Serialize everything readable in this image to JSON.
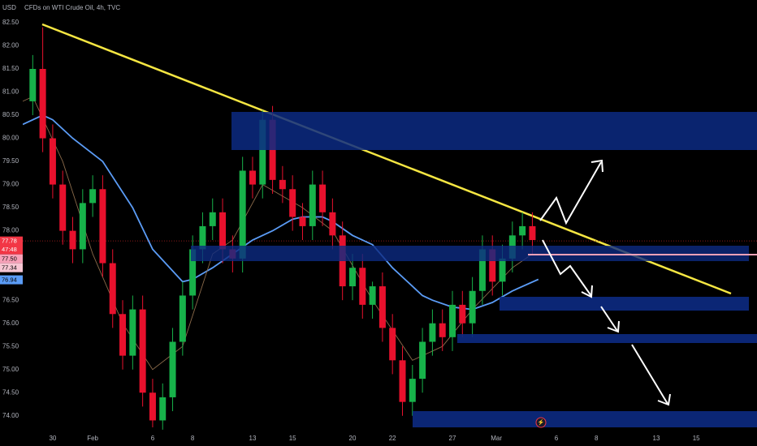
{
  "chart_data": {
    "type": "candlestick",
    "title": "CFDs on WTI Crude Oil, 4h, TVC",
    "currency": "USD",
    "up_color": "#17b24a",
    "down_color": "#e8112d",
    "xlim": [
      -1.5,
      35.24
    ],
    "ylim": [
      73.61,
      82.99
    ],
    "xticks": [
      {
        "value": 0,
        "label": "30"
      },
      {
        "value": 2,
        "label": "Feb"
      },
      {
        "value": 5,
        "label": "6"
      },
      {
        "value": 7,
        "label": "8"
      },
      {
        "value": 10,
        "label": "13"
      },
      {
        "value": 12,
        "label": "15"
      },
      {
        "value": 15,
        "label": "20"
      },
      {
        "value": 17,
        "label": "22"
      },
      {
        "value": 20,
        "label": "27"
      },
      {
        "value": 22.2,
        "label": "Mar"
      },
      {
        "value": 25.2,
        "label": "6"
      },
      {
        "value": 27.2,
        "label": "8"
      },
      {
        "value": 30.2,
        "label": "13"
      },
      {
        "value": 32.2,
        "label": "15"
      }
    ],
    "yticks": [
      {
        "value": 82.5,
        "label": "82.50"
      },
      {
        "value": 82,
        "label": "82.00"
      },
      {
        "value": 81.5,
        "label": "81.50"
      },
      {
        "value": 81,
        "label": "81.00"
      },
      {
        "value": 80.5,
        "label": "80.50"
      },
      {
        "value": 80,
        "label": "80.00"
      },
      {
        "value": 79.5,
        "label": "79.50"
      },
      {
        "value": 79,
        "label": "79.00"
      },
      {
        "value": 78.5,
        "label": "78.50"
      },
      {
        "value": 78,
        "label": "78.00"
      },
      {
        "value": 76.5,
        "label": "76.50"
      },
      {
        "value": 76,
        "label": "76.00"
      },
      {
        "value": 75.5,
        "label": "75.50"
      },
      {
        "value": 75,
        "label": "75.00"
      },
      {
        "value": 74.5,
        "label": "74.50"
      },
      {
        "value": 74,
        "label": "74.00"
      }
    ],
    "x": [
      -1,
      -0.5,
      0,
      0.5,
      1,
      1.5,
      2,
      2.5,
      3,
      3.5,
      4,
      4.5,
      5,
      5.5,
      6,
      6.5,
      7,
      7.5,
      8,
      8.5,
      9,
      9.5,
      10,
      10.5,
      11,
      11.5,
      12,
      12.5,
      13,
      13.5,
      14,
      14.5,
      15,
      15.5,
      16,
      16.5,
      17,
      17.5,
      18,
      18.5,
      19,
      19.5,
      20,
      20.5,
      21,
      21.5,
      22,
      22.5,
      23,
      23.5,
      24
    ],
    "open": [
      80.8,
      81.5,
      80.0,
      79.0,
      78.0,
      77.6,
      78.6,
      78.9,
      77.3,
      76.2,
      75.3,
      76.3,
      74.5,
      73.9,
      74.4,
      75.6,
      76.6,
      77.6,
      78.1,
      78.4,
      77.6,
      77.4,
      79.3,
      79.0,
      80.4,
      79.1,
      78.9,
      78.3,
      78.1,
      79.0,
      78.4,
      77.9,
      76.8,
      77.2,
      76.4,
      76.8,
      75.9,
      75.2,
      74.3,
      74.8,
      75.6,
      76.0,
      75.7,
      76.4,
      76.0,
      76.7,
      77.6,
      76.9,
      77.4,
      77.9,
      78.1
    ],
    "high": [
      81.8,
      82.4,
      80.3,
      79.3,
      78.3,
      78.9,
      79.2,
      79.2,
      77.6,
      76.5,
      76.6,
      76.6,
      74.8,
      74.7,
      75.9,
      76.9,
      77.9,
      78.4,
      78.7,
      78.7,
      77.9,
      79.6,
      79.6,
      80.6,
      80.7,
      79.4,
      79.2,
      78.6,
      79.3,
      79.3,
      78.7,
      78.2,
      77.5,
      77.5,
      76.9,
      77.1,
      76.2,
      75.5,
      75.1,
      75.9,
      76.3,
      76.3,
      76.7,
      76.7,
      77.0,
      77.9,
      77.9,
      77.7,
      78.2,
      78.4,
      78.4
    ],
    "low": [
      80.5,
      79.7,
      78.7,
      77.7,
      77.3,
      77.3,
      78.3,
      77.0,
      75.9,
      75.0,
      75.0,
      74.2,
      73.75,
      73.7,
      74.1,
      75.3,
      76.3,
      77.3,
      77.8,
      77.3,
      77.1,
      77.1,
      78.7,
      78.7,
      78.8,
      78.6,
      78.0,
      77.8,
      77.8,
      78.1,
      77.6,
      76.5,
      76.5,
      76.1,
      76.1,
      75.6,
      74.9,
      74.0,
      74.0,
      74.5,
      75.3,
      75.4,
      75.4,
      75.7,
      75.7,
      76.4,
      76.6,
      76.6,
      77.1,
      77.6,
      77.5
    ],
    "close": [
      81.5,
      80.0,
      79.0,
      78.0,
      77.6,
      78.6,
      78.9,
      77.3,
      76.2,
      75.3,
      76.3,
      74.5,
      73.9,
      74.4,
      75.6,
      76.6,
      77.6,
      78.1,
      78.4,
      77.6,
      77.4,
      79.3,
      79.0,
      80.4,
      79.1,
      78.9,
      78.3,
      78.1,
      79.0,
      78.4,
      77.9,
      76.8,
      77.2,
      76.4,
      76.8,
      75.9,
      75.2,
      74.3,
      74.8,
      75.6,
      76.0,
      75.7,
      76.4,
      76.0,
      76.7,
      77.6,
      76.9,
      77.4,
      77.9,
      78.1,
      77.8
    ],
    "lines": [
      {
        "color": "#5b9cf6",
        "width": 1.8,
        "x": [
          -1.5,
          -0.5,
          0,
          1,
          2.5,
          4,
          5,
          6.5,
          7,
          8,
          9,
          10,
          11,
          12,
          12.5,
          13.5,
          14,
          15,
          16,
          17,
          17.5,
          18.5,
          19,
          20,
          21,
          22,
          23,
          24.3
        ],
        "values": [
          80.3,
          80.5,
          80.4,
          80.0,
          79.5,
          78.5,
          77.6,
          76.9,
          76.95,
          77.2,
          77.5,
          77.8,
          78.0,
          78.25,
          78.3,
          78.3,
          78.2,
          77.9,
          77.7,
          77.2,
          77.0,
          76.6,
          76.5,
          76.35,
          76.3,
          76.45,
          76.7,
          76.95
        ]
      },
      {
        "color": "#8a6a4a",
        "width": 0.9,
        "x": [
          -1.5,
          -1,
          0.5,
          2,
          3.5,
          5,
          6.5,
          8,
          9,
          10.5,
          12.5,
          14,
          16,
          18,
          19.5,
          21,
          23,
          24
        ],
        "values": [
          80.8,
          80.9,
          79.5,
          77.5,
          76.0,
          75.0,
          75.5,
          77.5,
          77.8,
          79.0,
          78.5,
          78.0,
          76.5,
          75.2,
          75.5,
          76.3,
          77.2,
          77.5
        ]
      }
    ],
    "price_line": {
      "value": 77.78,
      "color": "#8b1a1a"
    },
    "price_labels": [
      {
        "value": 77.78,
        "label": "77.78",
        "countdown": "47:48",
        "color": "#f23645",
        "text_color": "#ffffff"
      },
      {
        "value": 77.5,
        "label": "77.50",
        "color": "#f7a1b8",
        "text_color": "#000000"
      },
      {
        "value": 77.34,
        "label": "77.34",
        "color": "#f7c6d3",
        "text_color": "#000000"
      },
      {
        "value": 76.94,
        "label": "76.94",
        "color": "#5b9cf6",
        "text_color": "#000000"
      }
    ]
  }
}
